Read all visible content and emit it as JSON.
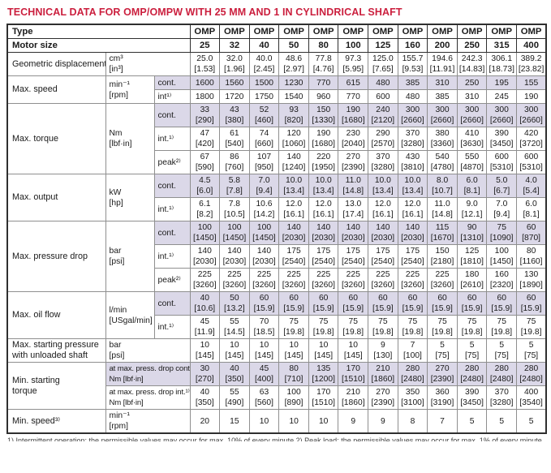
{
  "title": "TECHNICAL DATA FOR OMP/OMPW WITH 25 MM AND 1 IN CYLINDRICAL SHAFT",
  "colors": {
    "title_red": "#cb1f3e",
    "shaded_row": "#dbd8e8",
    "border_dark": "#2f2f2f",
    "border_light": "#8f8f8f"
  },
  "table": {
    "header_rows": [
      {
        "label": "Type",
        "values": [
          "OMP",
          "OMP",
          "OMP",
          "OMP",
          "OMP",
          "OMP",
          "OMP",
          "OMP",
          "OMP",
          "OMP",
          "OMP",
          "OMP"
        ]
      },
      {
        "label": "Motor size",
        "values": [
          "25",
          "32",
          "40",
          "50",
          "80",
          "100",
          "125",
          "160",
          "200",
          "250",
          "315",
          "400"
        ]
      }
    ],
    "groups": [
      {
        "label_lines": [
          "Geometric displacement"
        ],
        "unit_lines": [
          "cm³",
          "[in³]"
        ],
        "unit_colspan": 2,
        "subrows": [
          {
            "shaded": false,
            "lines": [
              [
                "25.0",
                "32.0",
                "40.0",
                "48.6",
                "77.8",
                "97.3",
                "125.0",
                "155.7",
                "194.6",
                "242.3",
                "306.1",
                "389.2"
              ],
              [
                "[1.53]",
                "[1.96]",
                "[2.45]",
                "[2.97]",
                "[4.76]",
                "[5.95]",
                "[7.65]",
                "[9.53]",
                "[11.91]",
                "[14.83]",
                "[18.73]",
                "[23.82]"
              ]
            ]
          }
        ]
      },
      {
        "label_lines": [
          "Max. speed"
        ],
        "unit_lines": [
          "min⁻¹",
          "[rpm]"
        ],
        "unit_colspan": 1,
        "subrows": [
          {
            "mode": "cont.",
            "shaded": true,
            "lines": [
              [
                "1600",
                "1560",
                "1500",
                "1230",
                "770",
                "615",
                "480",
                "385",
                "310",
                "250",
                "195",
                "155"
              ]
            ]
          },
          {
            "mode": "int¹⁾",
            "shaded": false,
            "lines": [
              [
                "1800",
                "1720",
                "1750",
                "1540",
                "960",
                "770",
                "600",
                "480",
                "385",
                "310",
                "245",
                "190"
              ]
            ]
          }
        ]
      },
      {
        "label_lines": [
          "Max. torque"
        ],
        "unit_lines": [
          "Nm",
          "[lbf·in]"
        ],
        "unit_colspan": 1,
        "subrows": [
          {
            "mode": "cont.",
            "shaded": true,
            "lines": [
              [
                "33",
                "43",
                "52",
                "93",
                "150",
                "190",
                "240",
                "300",
                "300",
                "300",
                "300",
                "300"
              ],
              [
                "[290]",
                "[380]",
                "[460]",
                "[820]",
                "[1330]",
                "[1680]",
                "[2120]",
                "[2660]",
                "[2660]",
                "[2660]",
                "[2660]",
                "[2660]"
              ]
            ]
          },
          {
            "mode": "int.¹⁾",
            "shaded": false,
            "lines": [
              [
                "47",
                "61",
                "74",
                "120",
                "190",
                "230",
                "290",
                "370",
                "380",
                "410",
                "390",
                "420"
              ],
              [
                "[420]",
                "[540]",
                "[660]",
                "[1060]",
                "[1680]",
                "[2040]",
                "[2570]",
                "[3280]",
                "[3360]",
                "[3630]",
                "[3450]",
                "[3720]"
              ]
            ]
          },
          {
            "mode": "peak²⁾",
            "shaded": false,
            "lines": [
              [
                "67",
                "86",
                "107",
                "140",
                "220",
                "270",
                "370",
                "430",
                "540",
                "550",
                "600",
                "600"
              ],
              [
                "[590]",
                "[760]",
                "[950]",
                "[1240]",
                "[1950]",
                "[2390]",
                "[3280]",
                "[3810]",
                "[4780]",
                "[4870]",
                "[5310]",
                "[5310]"
              ]
            ]
          }
        ]
      },
      {
        "label_lines": [
          "Max. output"
        ],
        "unit_lines": [
          "kW",
          "[hp]"
        ],
        "unit_colspan": 1,
        "subrows": [
          {
            "mode": "cont.",
            "shaded": true,
            "lines": [
              [
                "4.5",
                "5.8",
                "7.0",
                "10.0",
                "10.0",
                "11.0",
                "10.0",
                "10.0",
                "8.0",
                "6.0",
                "5.0",
                "4.0"
              ],
              [
                "[6.0]",
                "[7.8]",
                "[9.4]",
                "[13.4]",
                "[13.4]",
                "[14.8]",
                "[13.4]",
                "[13.4]",
                "[10.7]",
                "[8.1]",
                "[6.7]",
                "[5.4]"
              ]
            ]
          },
          {
            "mode": "int.¹⁾",
            "shaded": false,
            "lines": [
              [
                "6.1",
                "7.8",
                "10.6",
                "12.0",
                "12.0",
                "13.0",
                "12.0",
                "12.0",
                "11.0",
                "9.0",
                "7.0",
                "6.0"
              ],
              [
                "[8.2]",
                "[10.5]",
                "[14.2]",
                "[16.1]",
                "[16.1]",
                "[17.4]",
                "[16.1]",
                "[16.1]",
                "[14.8]",
                "[12.1]",
                "[9.4]",
                "[8.1]"
              ]
            ]
          }
        ]
      },
      {
        "label_lines": [
          "Max. pressure drop"
        ],
        "unit_lines": [
          "bar",
          "[psi]"
        ],
        "unit_colspan": 1,
        "subrows": [
          {
            "mode": "cont.",
            "shaded": true,
            "lines": [
              [
                "100",
                "100",
                "100",
                "140",
                "140",
                "140",
                "140",
                "140",
                "115",
                "90",
                "75",
                "60"
              ],
              [
                "[1450]",
                "[1450]",
                "[1450]",
                "[2030]",
                "[2030]",
                "[2030]",
                "[2030]",
                "[2030]",
                "[1670]",
                "[1310]",
                "[1090]",
                "[870]"
              ]
            ]
          },
          {
            "mode": "int.¹⁾",
            "shaded": false,
            "lines": [
              [
                "140",
                "140",
                "140",
                "175",
                "175",
                "175",
                "175",
                "175",
                "150",
                "125",
                "100",
                "80"
              ],
              [
                "[2030]",
                "[2030]",
                "[2030]",
                "[2540]",
                "[2540]",
                "[2540]",
                "[2540]",
                "[2540]",
                "[2180]",
                "[1810]",
                "[1450]",
                "[1160]"
              ]
            ]
          },
          {
            "mode": "peak²⁾",
            "shaded": false,
            "lines": [
              [
                "225",
                "225",
                "225",
                "225",
                "225",
                "225",
                "225",
                "225",
                "225",
                "180",
                "160",
                "130"
              ],
              [
                "[3260]",
                "[3260]",
                "[3260]",
                "[3260]",
                "[3260]",
                "[3260]",
                "[3260]",
                "[3260]",
                "[3260]",
                "[2610]",
                "[2320]",
                "[1890]"
              ]
            ]
          }
        ]
      },
      {
        "label_lines": [
          "Max. oil flow"
        ],
        "unit_lines": [
          "l/min",
          "[USgal/min]"
        ],
        "unit_colspan": 1,
        "subrows": [
          {
            "mode": "cont.",
            "shaded": true,
            "lines": [
              [
                "40",
                "50",
                "60",
                "60",
                "60",
                "60",
                "60",
                "60",
                "60",
                "60",
                "60",
                "60"
              ],
              [
                "[10.6]",
                "[13.2]",
                "[15.9]",
                "[15.9]",
                "[15.9]",
                "[15.9]",
                "[15.9]",
                "[15.9]",
                "[15.9]",
                "[15.9]",
                "[15.9]",
                "[15.9]"
              ]
            ]
          },
          {
            "mode": "int.¹⁾",
            "shaded": false,
            "lines": [
              [
                "45",
                "55",
                "70",
                "75",
                "75",
                "75",
                "75",
                "75",
                "75",
                "75",
                "75",
                "75"
              ],
              [
                "[11.9]",
                "[14.5]",
                "[18.5]",
                "[19.8]",
                "[19.8]",
                "[19.8]",
                "[19.8]",
                "[19.8]",
                "[19.8]",
                "[19.8]",
                "[19.8]",
                "[19.8]"
              ]
            ]
          }
        ]
      },
      {
        "label_lines": [
          "Max. starting pressure",
          "with unloaded shaft"
        ],
        "unit_lines": [
          "bar",
          "[psi]"
        ],
        "unit_colspan": 2,
        "subrows": [
          {
            "shaded": false,
            "lines": [
              [
                "10",
                "10",
                "10",
                "10",
                "10",
                "10",
                "9",
                "7",
                "5",
                "5",
                "5",
                "5"
              ],
              [
                "[145]",
                "[145]",
                "[145]",
                "[145]",
                "[145]",
                "[145]",
                "[130]",
                "[100]",
                "[75]",
                "[75]",
                "[75]",
                "[75]"
              ]
            ]
          }
        ]
      },
      {
        "label_lines": [
          "Min. starting",
          "torque"
        ],
        "unit_colspan": 2,
        "subrows": [
          {
            "modeunit_lines": [
              "at max. press. drop cont.",
              "Nm [lbf·in]"
            ],
            "shaded": true,
            "lines": [
              [
                "30",
                "40",
                "45",
                "80",
                "135",
                "170",
                "210",
                "280",
                "270",
                "280",
                "280",
                "280"
              ],
              [
                "[270]",
                "[350]",
                "[400]",
                "[710]",
                "[1200]",
                "[1510]",
                "[1860]",
                "[2480]",
                "[2390]",
                "[2480]",
                "[2480]",
                "[2480]"
              ]
            ]
          },
          {
            "modeunit_lines": [
              "at max. press. drop int.¹⁾",
              "Nm [lbf·in]"
            ],
            "shaded": false,
            "lines": [
              [
                "40",
                "55",
                "63",
                "100",
                "170",
                "210",
                "270",
                "350",
                "360",
                "390",
                "370",
                "400"
              ],
              [
                "[350]",
                "[490]",
                "[560]",
                "[890]",
                "[1510]",
                "[1860]",
                "[2390]",
                "[3100]",
                "[3190]",
                "[3450]",
                "[3280]",
                "[3540]"
              ]
            ]
          }
        ]
      },
      {
        "label_lines": [
          "Min. speed³⁾"
        ],
        "unit_lines": [
          "min⁻¹",
          "[rpm]"
        ],
        "unit_colspan": 2,
        "tall": true,
        "subrows": [
          {
            "shaded": false,
            "lines": [
              [
                "20",
                "15",
                "10",
                "10",
                "10",
                "9",
                "9",
                "8",
                "7",
                "5",
                "5",
                "5"
              ]
            ]
          }
        ]
      }
    ]
  },
  "footnote_clipped_text": "1) Intermittent operation: the permissible values may occur for max. 10% of every minute   2) Peak load: the permissible values may occur for max. 1% of every minute   3) With charge pressure"
}
